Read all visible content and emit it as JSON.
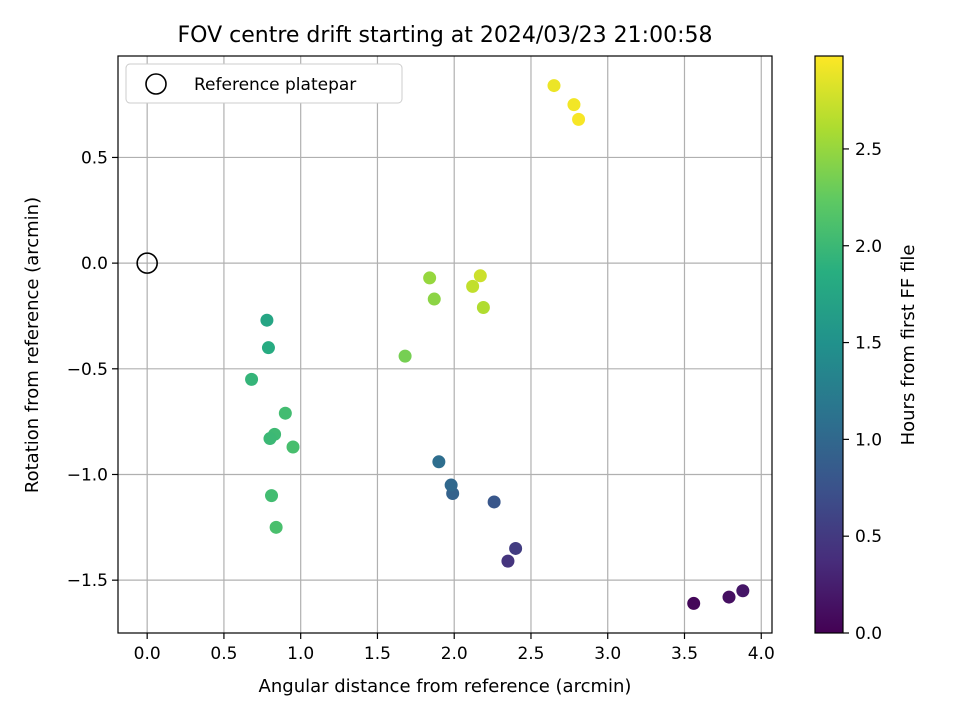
{
  "chart_data": {
    "type": "scatter",
    "title": "FOV centre drift starting at 2024/03/23 21:00:58",
    "xlabel": "Angular distance from reference (arcmin)",
    "ylabel": "Rotation from reference (arcmin)",
    "xlim": [
      -0.19,
      4.07
    ],
    "ylim": [
      -1.75,
      0.98
    ],
    "xticks": [
      0.0,
      0.5,
      1.0,
      1.5,
      2.0,
      2.5,
      3.0,
      3.5,
      4.0
    ],
    "xtick_labels": [
      "0.0",
      "0.5",
      "1.0",
      "1.5",
      "2.0",
      "2.5",
      "3.0",
      "3.5",
      "4.0"
    ],
    "yticks": [
      -1.5,
      -1.0,
      -0.5,
      0.0,
      0.5
    ],
    "ytick_labels": [
      "−1.5",
      "−1.0",
      "−0.5",
      "0.0",
      "0.5"
    ],
    "grid": true,
    "legend": {
      "position": "upper-left",
      "entries": [
        "Reference platepar"
      ]
    },
    "reference_point": {
      "x": 0.0,
      "y": 0.0,
      "label": "Reference platepar"
    },
    "colorbar": {
      "label": "Hours from first FF file",
      "colormap": "viridis",
      "range": [
        0.0,
        2.98
      ],
      "ticks": [
        0.0,
        0.5,
        1.0,
        1.5,
        2.0,
        2.5
      ],
      "tick_labels": [
        "0.0",
        "0.5",
        "1.0",
        "1.5",
        "2.0",
        "2.5"
      ]
    },
    "points": [
      {
        "x": 3.56,
        "y": -1.61,
        "hours": 0.05
      },
      {
        "x": 3.79,
        "y": -1.58,
        "hours": 0.12
      },
      {
        "x": 3.88,
        "y": -1.55,
        "hours": 0.18
      },
      {
        "x": 2.35,
        "y": -1.41,
        "hours": 0.45
      },
      {
        "x": 2.4,
        "y": -1.35,
        "hours": 0.52
      },
      {
        "x": 2.26,
        "y": -1.13,
        "hours": 0.8
      },
      {
        "x": 1.99,
        "y": -1.09,
        "hours": 0.93
      },
      {
        "x": 1.98,
        "y": -1.05,
        "hours": 1.0
      },
      {
        "x": 1.9,
        "y": -0.94,
        "hours": 1.07
      },
      {
        "x": 0.78,
        "y": -0.27,
        "hours": 1.75
      },
      {
        "x": 0.79,
        "y": -0.4,
        "hours": 1.82
      },
      {
        "x": 0.68,
        "y": -0.55,
        "hours": 1.95
      },
      {
        "x": 0.9,
        "y": -0.71,
        "hours": 2.05
      },
      {
        "x": 0.83,
        "y": -0.81,
        "hours": 2.02
      },
      {
        "x": 0.8,
        "y": -0.83,
        "hours": 2.0
      },
      {
        "x": 0.95,
        "y": -0.87,
        "hours": 2.08
      },
      {
        "x": 0.81,
        "y": -1.1,
        "hours": 2.05
      },
      {
        "x": 0.84,
        "y": -1.25,
        "hours": 2.1
      },
      {
        "x": 1.68,
        "y": -0.44,
        "hours": 2.35
      },
      {
        "x": 1.84,
        "y": -0.07,
        "hours": 2.5
      },
      {
        "x": 1.87,
        "y": -0.17,
        "hours": 2.45
      },
      {
        "x": 2.12,
        "y": -0.11,
        "hours": 2.7
      },
      {
        "x": 2.17,
        "y": -0.06,
        "hours": 2.75
      },
      {
        "x": 2.19,
        "y": -0.21,
        "hours": 2.62
      },
      {
        "x": 2.65,
        "y": 0.84,
        "hours": 2.9
      },
      {
        "x": 2.78,
        "y": 0.75,
        "hours": 2.93
      },
      {
        "x": 2.81,
        "y": 0.68,
        "hours": 2.95
      }
    ]
  }
}
